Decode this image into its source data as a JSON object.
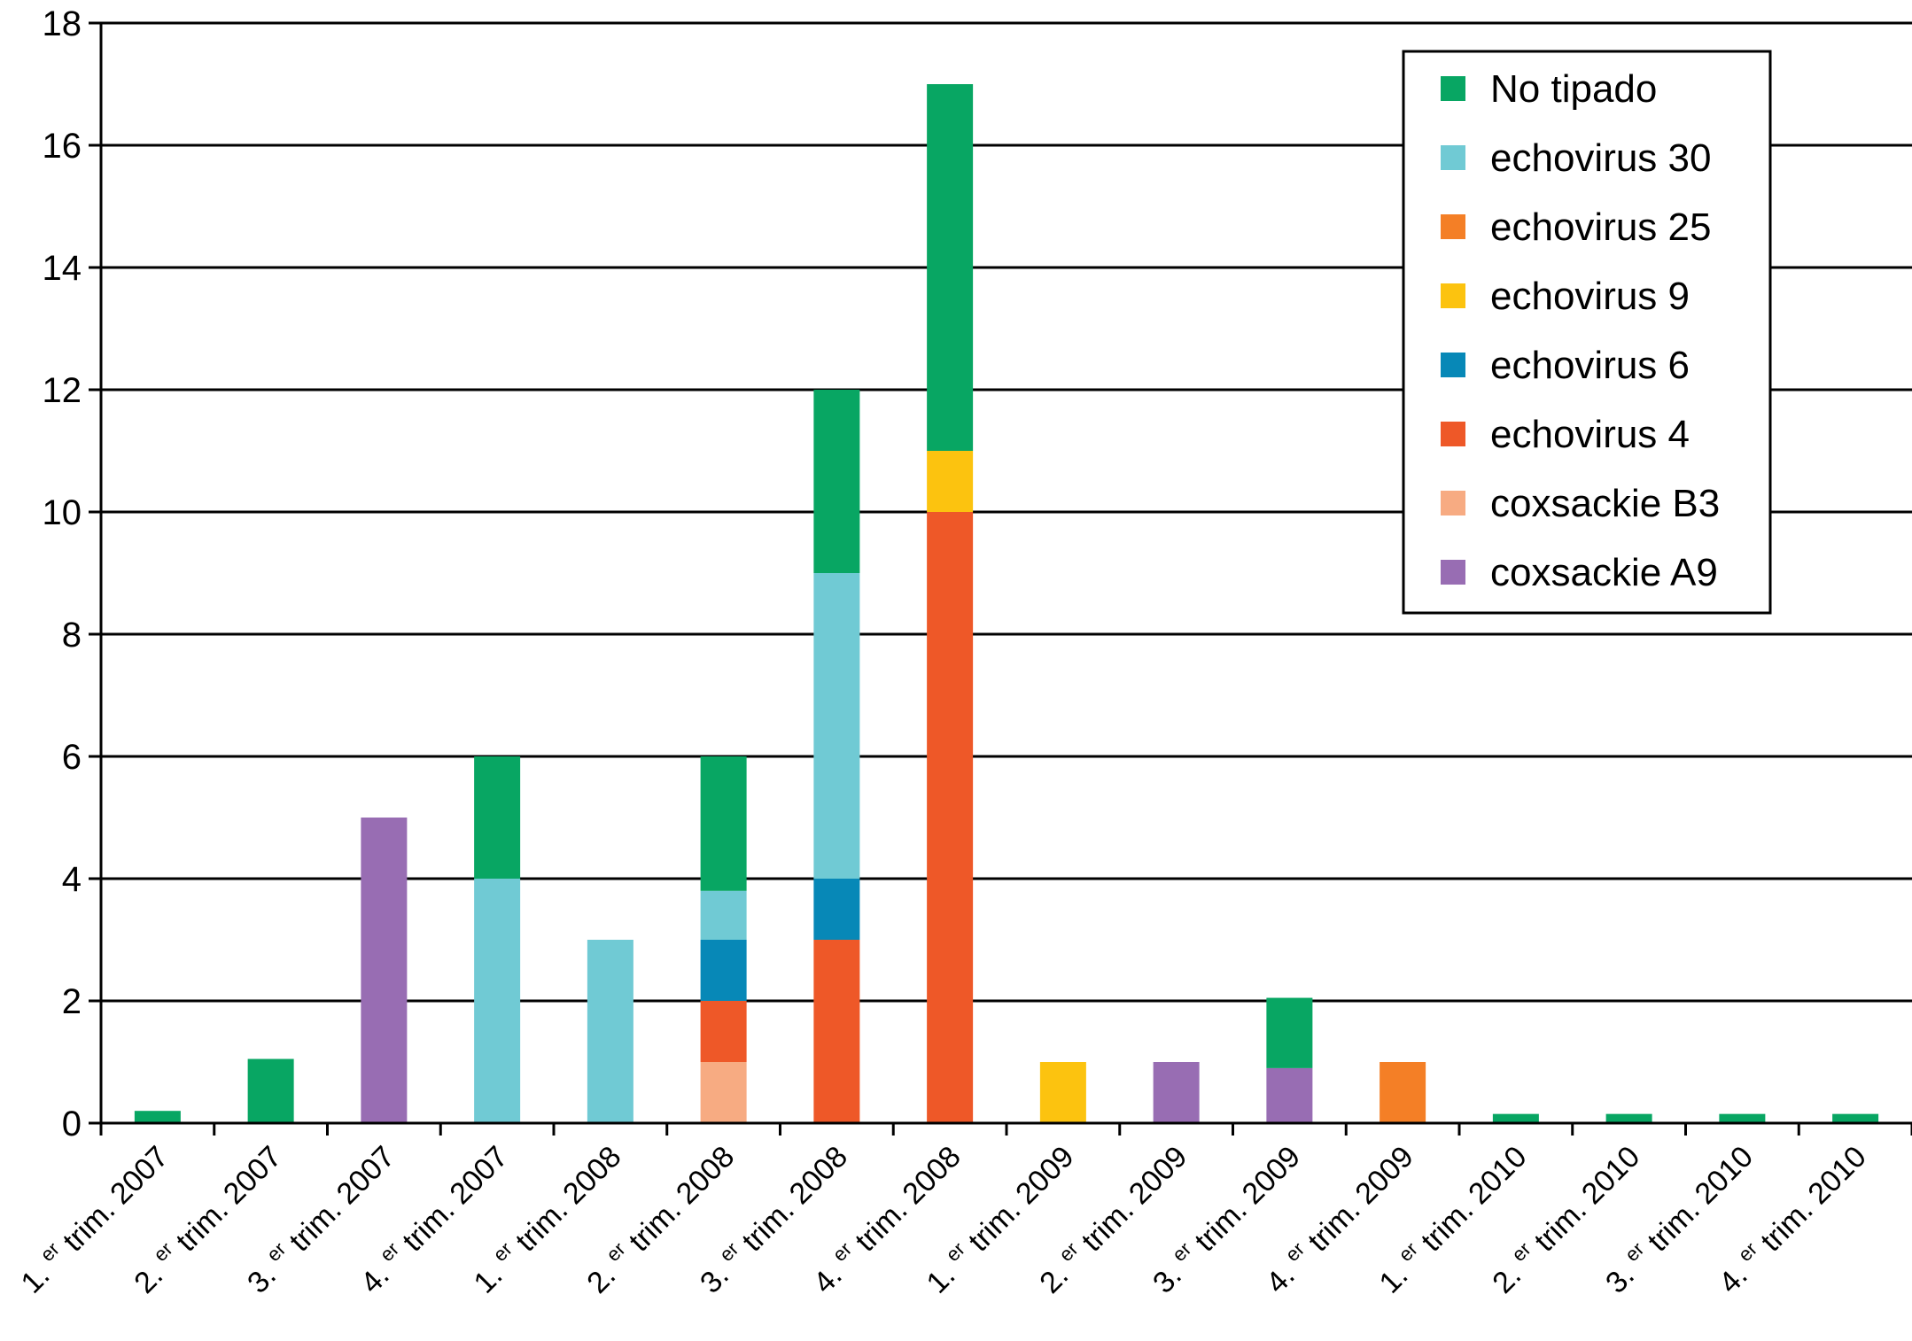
{
  "chart_data": {
    "type": "bar",
    "stacked": true,
    "title": "",
    "xlabel": "",
    "ylabel": "",
    "ylim": [
      0,
      18
    ],
    "yticks": [
      0,
      2,
      4,
      6,
      8,
      10,
      12,
      14,
      16,
      18
    ],
    "grid": true,
    "legend_position": "top-right",
    "categories": [
      {
        "num": "1.",
        "sup": "er",
        "rest": "trim. 2007"
      },
      {
        "num": "2.",
        "sup": "er",
        "rest": "trim. 2007"
      },
      {
        "num": "3.",
        "sup": "er",
        "rest": "trim. 2007"
      },
      {
        "num": "4.",
        "sup": "er",
        "rest": "trim. 2007"
      },
      {
        "num": "1.",
        "sup": "er",
        "rest": "trim. 2008"
      },
      {
        "num": "2.",
        "sup": "er",
        "rest": "trim. 2008"
      },
      {
        "num": "3.",
        "sup": "er",
        "rest": "trim. 2008"
      },
      {
        "num": "4.",
        "sup": "er",
        "rest": "trim. 2008"
      },
      {
        "num": "1.",
        "sup": "er",
        "rest": "trim. 2009"
      },
      {
        "num": "2.",
        "sup": "er",
        "rest": "trim. 2009"
      },
      {
        "num": "3.",
        "sup": "er",
        "rest": "trim. 2009"
      },
      {
        "num": "4.",
        "sup": "er",
        "rest": "trim. 2009"
      },
      {
        "num": "1.",
        "sup": "er",
        "rest": "trim. 2010"
      },
      {
        "num": "2.",
        "sup": "er",
        "rest": "trim. 2010"
      },
      {
        "num": "3.",
        "sup": "er",
        "rest": "trim. 2010"
      },
      {
        "num": "4.",
        "sup": "er",
        "rest": "trim. 2010"
      }
    ],
    "series": [
      {
        "name": "coxsackie A9",
        "color": "#986db3",
        "values": [
          0,
          0,
          5,
          0,
          0,
          0,
          0,
          0,
          0,
          1,
          0.9,
          0,
          0,
          0,
          0,
          0
        ]
      },
      {
        "name": "coxsackie B3",
        "color": "#f7ab82",
        "values": [
          0,
          0,
          0,
          0,
          0,
          1,
          0,
          0,
          0,
          0,
          0,
          0,
          0,
          0,
          0,
          0
        ]
      },
      {
        "name": "echovirus 4",
        "color": "#ee5828",
        "values": [
          0,
          0,
          0,
          0,
          0,
          1,
          3,
          10,
          0,
          0,
          0,
          0,
          0,
          0,
          0,
          0
        ]
      },
      {
        "name": "echovirus 6",
        "color": "#0788b7",
        "values": [
          0,
          0,
          0,
          0,
          0,
          1,
          1,
          0,
          0,
          0,
          0,
          0,
          0,
          0,
          0,
          0
        ]
      },
      {
        "name": "echovirus 9",
        "color": "#fcc30f",
        "values": [
          0,
          0,
          0,
          0,
          0,
          0,
          0,
          1,
          1,
          0,
          0,
          0,
          0,
          0,
          0,
          0
        ]
      },
      {
        "name": "echovirus 25",
        "color": "#f47f26",
        "values": [
          0,
          0,
          0,
          0,
          0,
          0,
          0,
          0,
          0,
          0,
          0,
          1,
          0,
          0,
          0,
          0
        ]
      },
      {
        "name": "echovirus 30",
        "color": "#70cad4",
        "values": [
          0,
          0,
          0,
          4,
          3,
          0.8,
          5,
          0,
          0,
          0,
          0,
          0,
          0,
          0,
          0,
          0
        ]
      },
      {
        "name": "No tipado",
        "color": "#08a663",
        "values": [
          0.2,
          1.05,
          0,
          2,
          0,
          2.2,
          3,
          6,
          0,
          0,
          1.15,
          0,
          0.15,
          0.15,
          0.15,
          0.15
        ]
      }
    ],
    "legend_order": [
      "No tipado",
      "echovirus 30",
      "echovirus 25",
      "echovirus 9",
      "echovirus 6",
      "echovirus 4",
      "coxsackie B3",
      "coxsackie A9"
    ]
  }
}
